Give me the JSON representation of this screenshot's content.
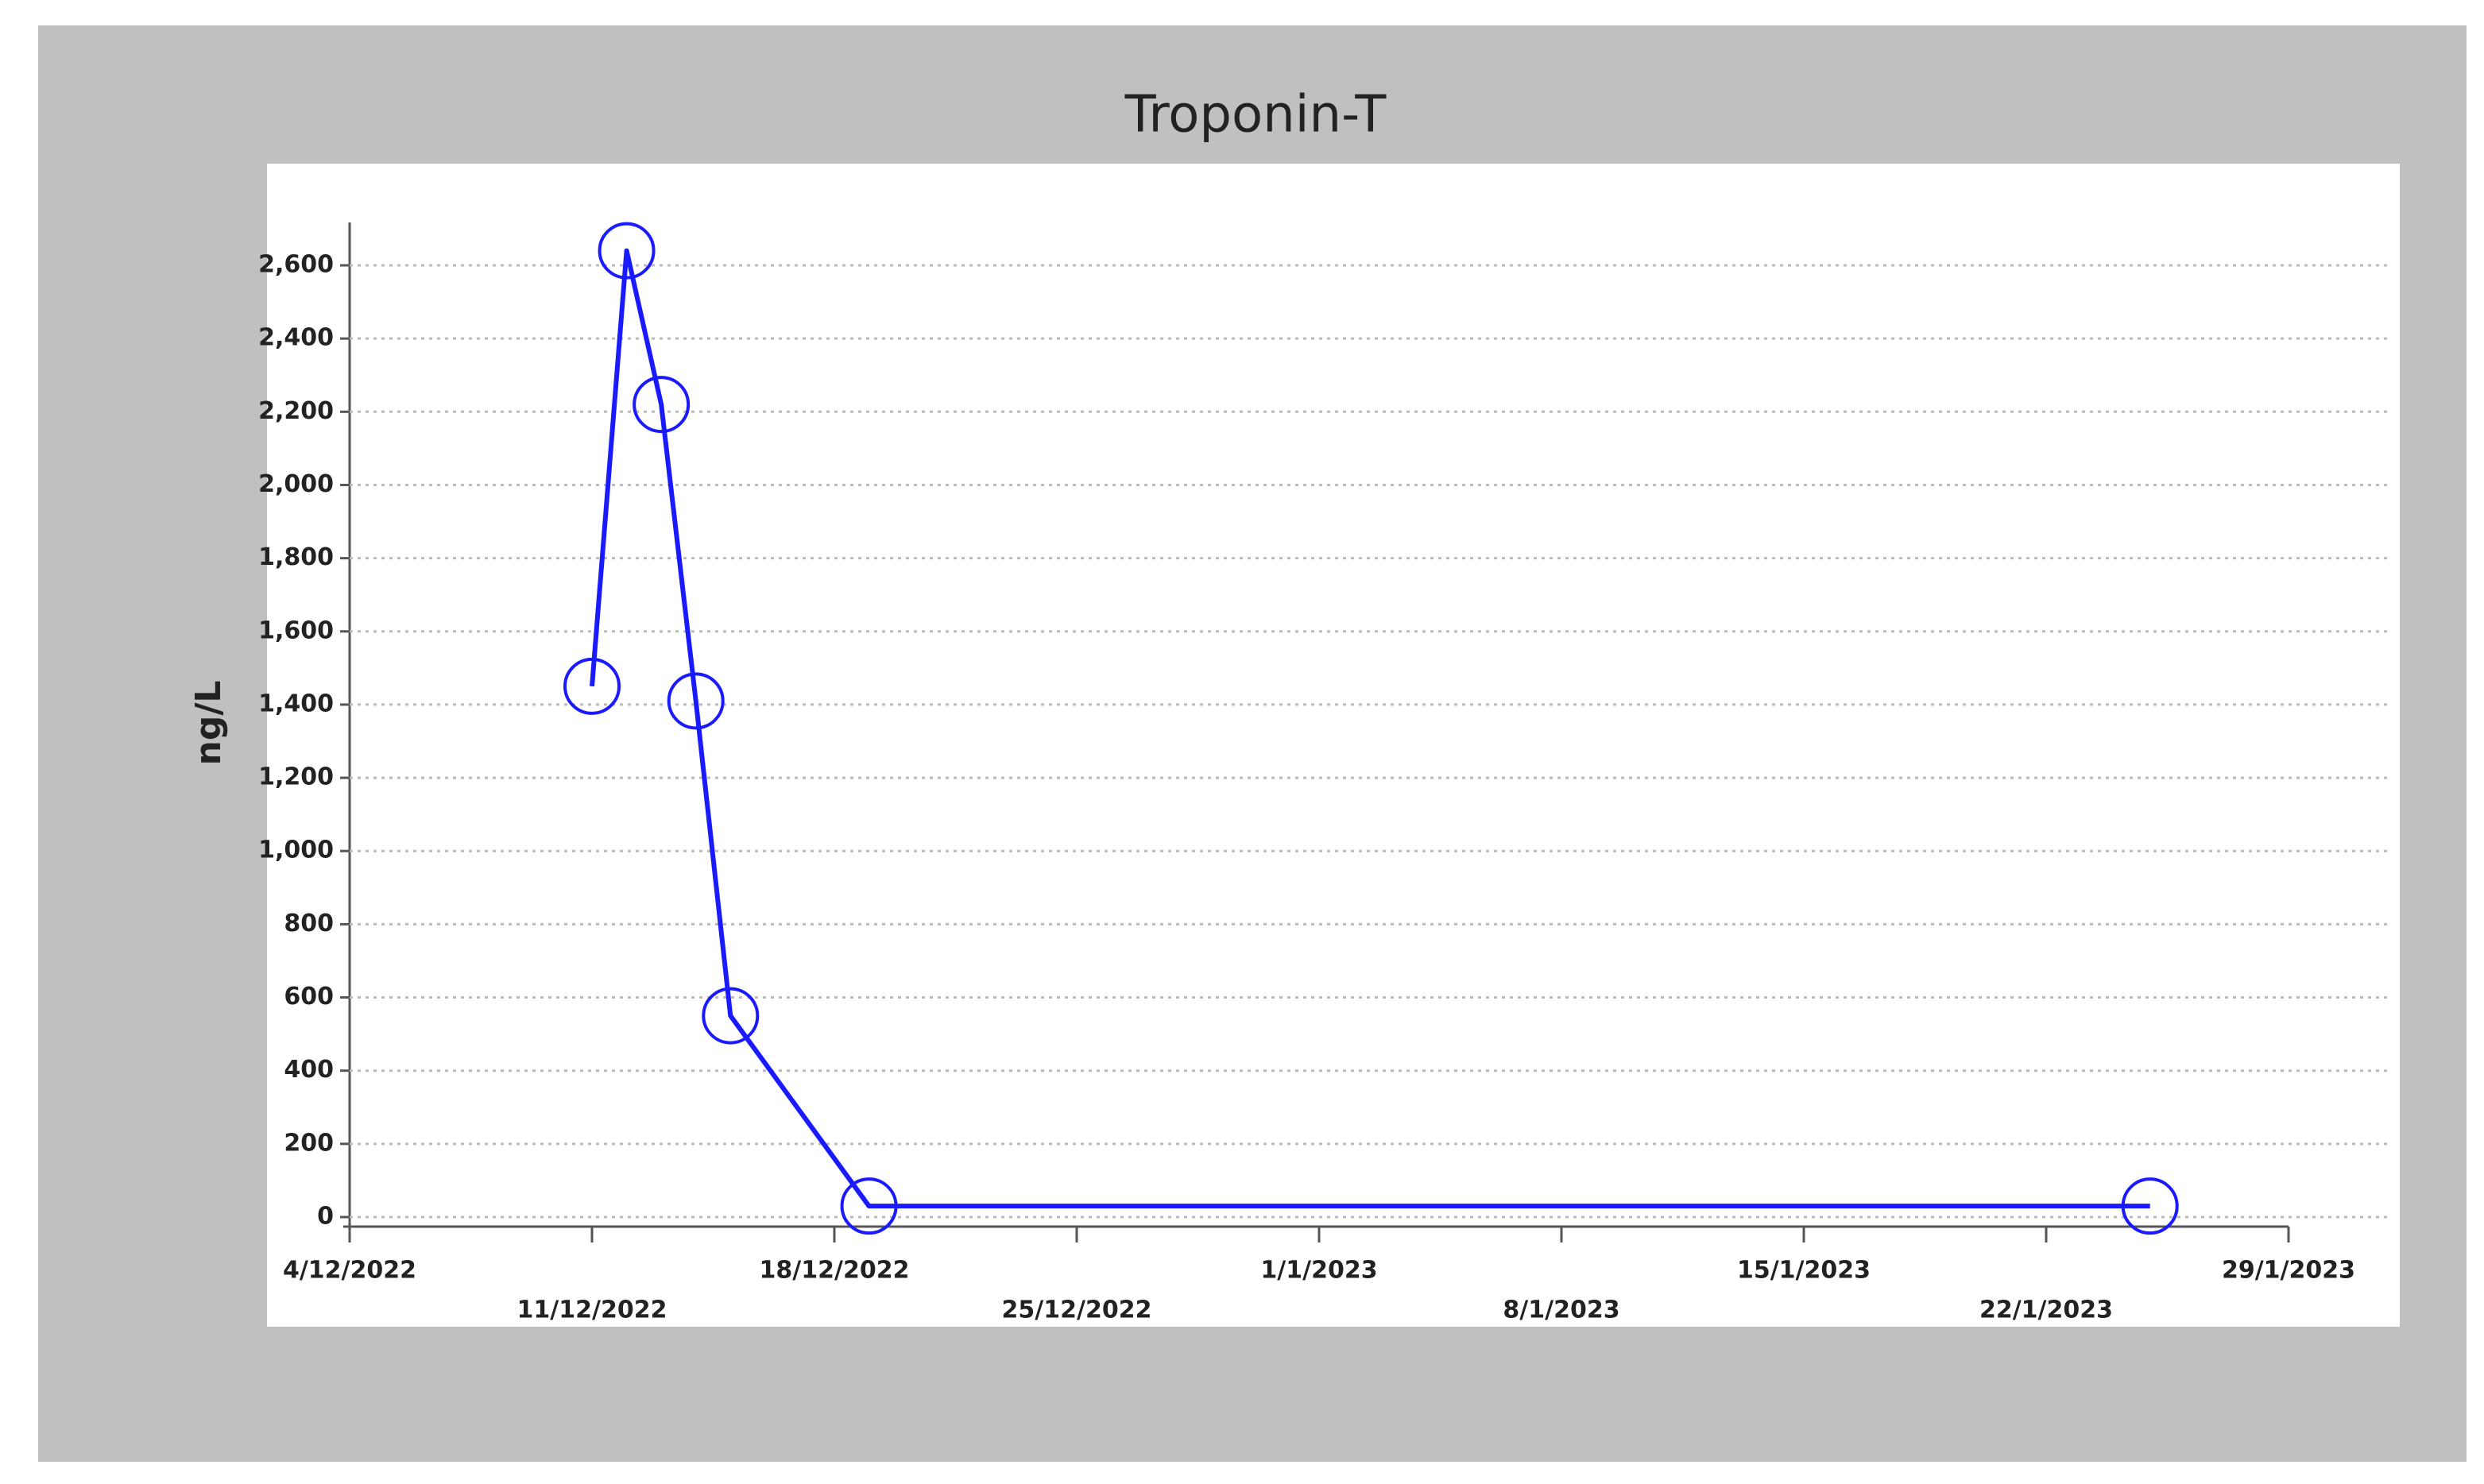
{
  "chart_data": {
    "type": "line",
    "title": "Troponin-T",
    "y_label": "ng/L",
    "x": [
      "11/12/2022",
      "12/12/2022",
      "13/12/2022",
      "14/12/2022",
      "15/12/2022",
      "19/12/2022",
      "25/1/2023"
    ],
    "series": [
      {
        "color": "#1a1aff",
        "values": [
          1450,
          2640,
          2220,
          1410,
          550,
          30,
          30
        ]
      }
    ],
    "xlim": [
      "4/12/2022",
      "29/1/2023"
    ],
    "xticks": [
      "4/12/2022",
      "11/12/2022",
      "18/12/2022",
      "25/12/2022",
      "1/1/2023",
      "8/1/2023",
      "15/1/2023",
      "22/1/2023",
      "29/1/2023"
    ],
    "ylim": [
      0,
      2600
    ],
    "yticks": [
      0,
      200,
      400,
      600,
      800,
      {
        "value": 1000,
        "label": "1,000"
      },
      {
        "value": 1200,
        "label": "1,200"
      },
      {
        "value": 1400,
        "label": "1,400"
      },
      {
        "value": 1600,
        "label": "1,600"
      },
      {
        "value": 1800,
        "label": "1,800"
      },
      {
        "value": 2000,
        "label": "2,000"
      },
      {
        "value": 2200,
        "label": "2,200"
      },
      {
        "value": 2400,
        "label": "2,400"
      },
      {
        "value": 2600,
        "label": "2,600"
      }
    ],
    "grid": true
  }
}
